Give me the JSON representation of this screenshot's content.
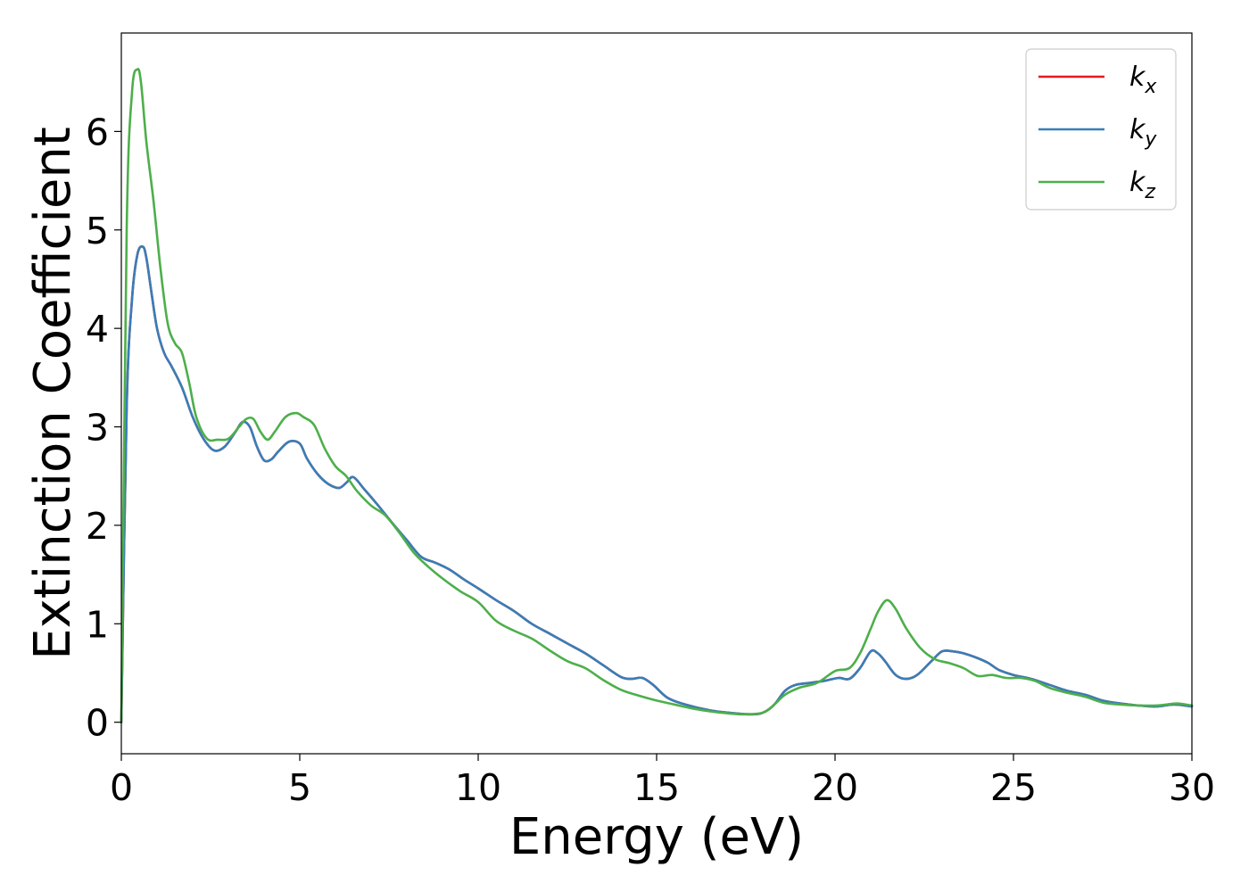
{
  "chart_data": {
    "type": "line",
    "title": "",
    "xlabel": "Energy (eV)",
    "ylabel": "Extinction Coefficient",
    "xlim": [
      0,
      30
    ],
    "ylim": [
      -0.32,
      7.0
    ],
    "xticks": [
      0,
      5,
      10,
      15,
      20,
      25,
      30
    ],
    "yticks": [
      0,
      1,
      2,
      3,
      4,
      5,
      6
    ],
    "grid": false,
    "legend_position": "top-right",
    "series": [
      {
        "name": "k_x",
        "label_base": "k",
        "label_sub": "x",
        "color": "#e41a1c",
        "x": [
          0,
          0.15,
          0.3,
          0.45,
          0.6,
          0.7,
          0.85,
          1.0,
          1.2,
          1.4,
          1.7,
          2.0,
          2.3,
          2.6,
          2.9,
          3.2,
          3.4,
          3.6,
          3.8,
          4.0,
          4.2,
          4.4,
          4.7,
          5.0,
          5.2,
          5.5,
          5.8,
          6.1,
          6.3,
          6.5,
          6.8,
          7.2,
          7.6,
          8.0,
          8.4,
          8.8,
          9.2,
          9.6,
          10.0,
          10.5,
          11.0,
          11.5,
          12.0,
          12.5,
          13.0,
          13.5,
          14.0,
          14.3,
          14.6,
          14.9,
          15.3,
          15.8,
          16.5,
          17.2,
          17.7,
          18.0,
          18.3,
          18.6,
          18.9,
          19.3,
          19.7,
          20.1,
          20.4,
          20.7,
          21.0,
          21.2,
          21.4,
          21.7,
          22.0,
          22.3,
          22.7,
          23.0,
          23.3,
          23.6,
          24.0,
          24.3,
          24.6,
          25.0,
          25.5,
          26.0,
          26.5,
          27.0,
          27.5,
          28.0,
          28.5,
          29.0,
          29.5,
          30.0
        ],
        "y": [
          0,
          3.2,
          4.3,
          4.75,
          4.83,
          4.72,
          4.35,
          4.0,
          3.75,
          3.62,
          3.4,
          3.1,
          2.88,
          2.76,
          2.8,
          2.95,
          3.05,
          3.0,
          2.8,
          2.66,
          2.67,
          2.75,
          2.85,
          2.83,
          2.68,
          2.52,
          2.42,
          2.38,
          2.43,
          2.49,
          2.37,
          2.2,
          2.02,
          1.85,
          1.68,
          1.62,
          1.55,
          1.45,
          1.36,
          1.24,
          1.13,
          1.0,
          0.9,
          0.8,
          0.7,
          0.58,
          0.46,
          0.44,
          0.45,
          0.38,
          0.25,
          0.18,
          0.12,
          0.09,
          0.08,
          0.1,
          0.18,
          0.32,
          0.38,
          0.4,
          0.42,
          0.45,
          0.44,
          0.55,
          0.72,
          0.7,
          0.62,
          0.48,
          0.44,
          0.48,
          0.62,
          0.72,
          0.72,
          0.7,
          0.65,
          0.6,
          0.53,
          0.48,
          0.44,
          0.38,
          0.32,
          0.28,
          0.22,
          0.19,
          0.17,
          0.16,
          0.18,
          0.16
        ]
      },
      {
        "name": "k_y",
        "label_base": "k",
        "label_sub": "y",
        "color": "#377eb8",
        "x": [
          0,
          0.15,
          0.3,
          0.45,
          0.6,
          0.7,
          0.85,
          1.0,
          1.2,
          1.4,
          1.7,
          2.0,
          2.3,
          2.6,
          2.9,
          3.2,
          3.4,
          3.6,
          3.8,
          4.0,
          4.2,
          4.4,
          4.7,
          5.0,
          5.2,
          5.5,
          5.8,
          6.1,
          6.3,
          6.5,
          6.8,
          7.2,
          7.6,
          8.0,
          8.4,
          8.8,
          9.2,
          9.6,
          10.0,
          10.5,
          11.0,
          11.5,
          12.0,
          12.5,
          13.0,
          13.5,
          14.0,
          14.3,
          14.6,
          14.9,
          15.3,
          15.8,
          16.5,
          17.2,
          17.7,
          18.0,
          18.3,
          18.6,
          18.9,
          19.3,
          19.7,
          20.1,
          20.4,
          20.7,
          21.0,
          21.2,
          21.4,
          21.7,
          22.0,
          22.3,
          22.7,
          23.0,
          23.3,
          23.6,
          24.0,
          24.3,
          24.6,
          25.0,
          25.5,
          26.0,
          26.5,
          27.0,
          27.5,
          28.0,
          28.5,
          29.0,
          29.5,
          30.0
        ],
        "y": [
          0,
          3.2,
          4.3,
          4.75,
          4.83,
          4.72,
          4.35,
          4.0,
          3.75,
          3.62,
          3.4,
          3.1,
          2.88,
          2.76,
          2.8,
          2.95,
          3.05,
          3.0,
          2.8,
          2.66,
          2.67,
          2.75,
          2.85,
          2.83,
          2.68,
          2.52,
          2.42,
          2.38,
          2.43,
          2.49,
          2.37,
          2.2,
          2.02,
          1.85,
          1.68,
          1.62,
          1.55,
          1.45,
          1.36,
          1.24,
          1.13,
          1.0,
          0.9,
          0.8,
          0.7,
          0.58,
          0.46,
          0.44,
          0.45,
          0.38,
          0.25,
          0.18,
          0.12,
          0.09,
          0.08,
          0.1,
          0.18,
          0.32,
          0.38,
          0.4,
          0.42,
          0.45,
          0.44,
          0.55,
          0.72,
          0.7,
          0.62,
          0.48,
          0.44,
          0.48,
          0.62,
          0.72,
          0.72,
          0.7,
          0.65,
          0.6,
          0.53,
          0.48,
          0.44,
          0.38,
          0.32,
          0.28,
          0.22,
          0.19,
          0.17,
          0.16,
          0.18,
          0.16
        ]
      },
      {
        "name": "k_z",
        "label_base": "k",
        "label_sub": "z",
        "color": "#4daf4a",
        "x": [
          0,
          0.15,
          0.3,
          0.45,
          0.55,
          0.7,
          0.9,
          1.1,
          1.3,
          1.5,
          1.7,
          1.9,
          2.1,
          2.4,
          2.7,
          3.0,
          3.3,
          3.5,
          3.7,
          3.9,
          4.1,
          4.3,
          4.6,
          4.9,
          5.1,
          5.4,
          5.7,
          6.0,
          6.3,
          6.6,
          7.0,
          7.4,
          7.8,
          8.2,
          8.6,
          9.0,
          9.5,
          10.0,
          10.5,
          11.0,
          11.5,
          12.0,
          12.5,
          13.0,
          13.5,
          14.0,
          14.5,
          15.0,
          15.5,
          16.0,
          16.5,
          17.0,
          17.5,
          18.0,
          18.3,
          18.6,
          19.0,
          19.5,
          20.0,
          20.4,
          20.7,
          21.0,
          21.2,
          21.45,
          21.7,
          22.0,
          22.4,
          22.8,
          23.2,
          23.6,
          24.0,
          24.4,
          24.8,
          25.2,
          25.6,
          26.0,
          26.5,
          27.0,
          27.5,
          28.0,
          28.5,
          29.0,
          29.3,
          29.6,
          30.0
        ],
        "y": [
          0,
          5.0,
          6.4,
          6.63,
          6.5,
          5.9,
          5.3,
          4.6,
          4.05,
          3.85,
          3.75,
          3.45,
          3.1,
          2.88,
          2.87,
          2.88,
          3.0,
          3.08,
          3.08,
          2.95,
          2.87,
          2.95,
          3.1,
          3.14,
          3.1,
          3.02,
          2.78,
          2.6,
          2.5,
          2.35,
          2.2,
          2.1,
          1.92,
          1.72,
          1.58,
          1.46,
          1.33,
          1.22,
          1.03,
          0.93,
          0.85,
          0.73,
          0.62,
          0.55,
          0.43,
          0.33,
          0.27,
          0.22,
          0.18,
          0.14,
          0.11,
          0.09,
          0.08,
          0.1,
          0.18,
          0.28,
          0.35,
          0.4,
          0.52,
          0.55,
          0.7,
          0.95,
          1.12,
          1.24,
          1.15,
          0.95,
          0.75,
          0.64,
          0.6,
          0.55,
          0.47,
          0.48,
          0.45,
          0.45,
          0.42,
          0.35,
          0.3,
          0.26,
          0.2,
          0.18,
          0.17,
          0.17,
          0.18,
          0.19,
          0.17
        ]
      }
    ]
  }
}
